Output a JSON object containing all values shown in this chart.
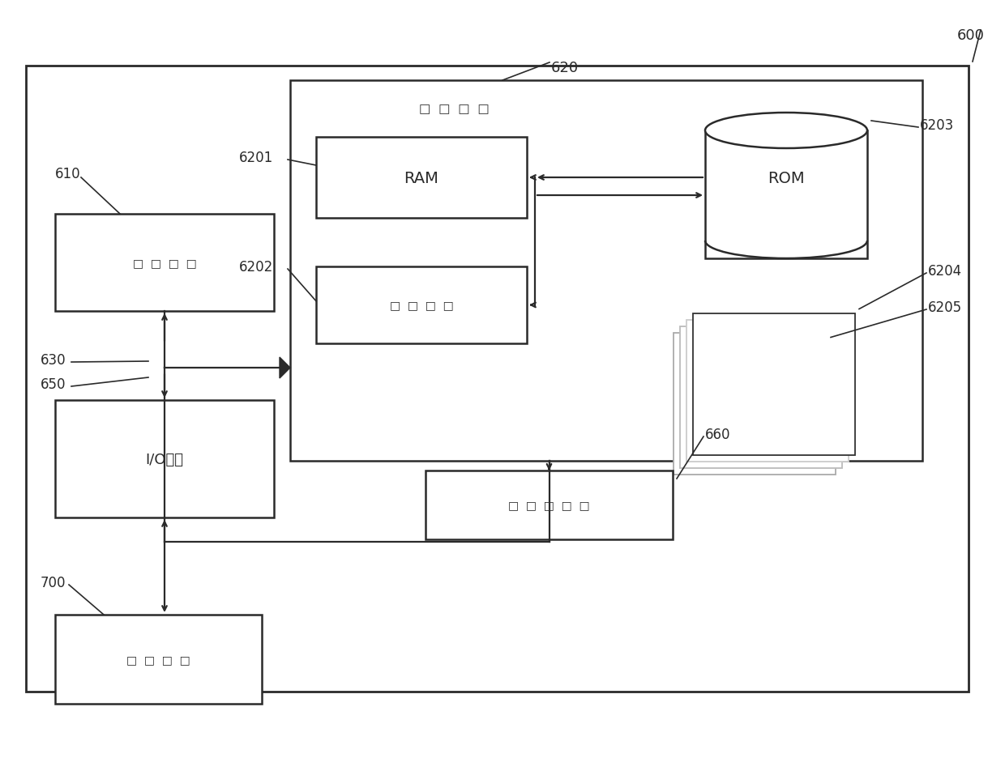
{
  "bg_color": "#ffffff",
  "lc": "#2a2a2a",
  "lw": 1.6,
  "fig_w": 12.4,
  "fig_h": 9.37,
  "labels": {
    "600": "600",
    "620": "620",
    "610": "610",
    "6201": "6201",
    "6202": "6202",
    "6203": "6203",
    "6204": "6204",
    "6205": "6205",
    "630": "630",
    "650": "650",
    "660": "660",
    "700": "700"
  },
  "txt_RAM": "RAM",
  "txt_ROM": "ROM",
  "txt_IO": "I/O接口",
  "sq4": "□  □  □  □",
  "sq5": "□  □  □  □  □",
  "sq4b": "□  □  □  □"
}
